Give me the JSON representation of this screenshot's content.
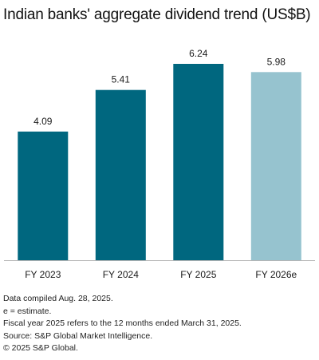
{
  "chart_data": {
    "type": "bar",
    "title": "Indian banks' aggregate dividend trend (US$B)",
    "categories": [
      "FY 2023",
      "FY 2024",
      "FY 2025",
      "FY 2026e"
    ],
    "values": [
      4.09,
      5.41,
      6.24,
      5.98
    ],
    "value_labels": [
      "4.09",
      "5.41",
      "6.24",
      "5.98"
    ],
    "bar_colors": [
      "#00677f",
      "#00677f",
      "#00677f",
      "#96c3cf"
    ],
    "ylim": [
      0,
      6.24
    ],
    "xlabel": "",
    "ylabel": "",
    "grid": false,
    "legend": "none"
  },
  "notes": [
    "Data compiled Aug. 28, 2025.",
    "e = estimate.",
    "Fiscal year 2025 refers to the 12 months ended March 31, 2025.",
    "Source: S&P Global Market Intelligence.",
    "© 2025 S&P Global."
  ]
}
